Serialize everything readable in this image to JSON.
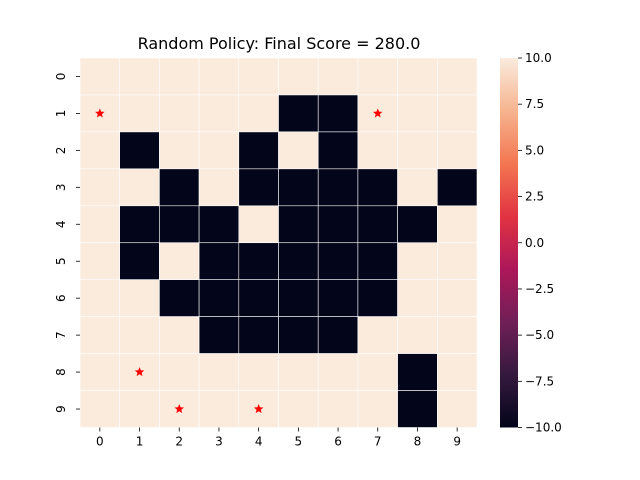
{
  "chart_data": {
    "type": "heatmap",
    "title": "Random Policy: Final Score = 280.0",
    "x_ticks": [
      "0",
      "1",
      "2",
      "3",
      "4",
      "5",
      "6",
      "7",
      "8",
      "9"
    ],
    "y_ticks": [
      "0",
      "1",
      "2",
      "3",
      "4",
      "5",
      "6",
      "7",
      "8",
      "9"
    ],
    "values": [
      [
        10,
        10,
        10,
        10,
        10,
        10,
        10,
        10,
        10,
        10
      ],
      [
        10,
        10,
        10,
        10,
        10,
        -10,
        -10,
        10,
        10,
        10
      ],
      [
        10,
        -10,
        10,
        10,
        -10,
        10,
        -10,
        10,
        10,
        10
      ],
      [
        10,
        10,
        -10,
        10,
        -10,
        -10,
        -10,
        -10,
        10,
        -10
      ],
      [
        10,
        -10,
        -10,
        -10,
        10,
        -10,
        -10,
        -10,
        -10,
        10
      ],
      [
        10,
        -10,
        10,
        -10,
        -10,
        -10,
        -10,
        -10,
        10,
        10
      ],
      [
        10,
        10,
        -10,
        -10,
        -10,
        -10,
        -10,
        -10,
        10,
        10
      ],
      [
        10,
        10,
        10,
        -10,
        -10,
        -10,
        -10,
        10,
        10,
        10
      ],
      [
        10,
        10,
        10,
        10,
        10,
        10,
        10,
        10,
        -10,
        10
      ],
      [
        10,
        10,
        10,
        10,
        10,
        10,
        10,
        10,
        -10,
        10
      ]
    ],
    "markers": [
      {
        "row": 1,
        "col": 0
      },
      {
        "row": 1,
        "col": 7
      },
      {
        "row": 8,
        "col": 1
      },
      {
        "row": 9,
        "col": 2
      },
      {
        "row": 9,
        "col": 4
      }
    ],
    "marker_color": "#ff0000",
    "colorbar": {
      "range": [
        -10,
        10
      ],
      "ticks": [
        "10.0",
        "7.5",
        "5.0",
        "2.5",
        "0.0",
        "−2.5",
        "−5.0",
        "−7.5",
        "−10.0"
      ],
      "tick_values": [
        10,
        7.5,
        5,
        2.5,
        0,
        -2.5,
        -5,
        -7.5,
        -10
      ],
      "colormap": "rocket",
      "colors": [
        "#03051a",
        "#35193e",
        "#701f57",
        "#ad1759",
        "#e13342",
        "#f37651",
        "#f6b48f",
        "#faebdd"
      ]
    },
    "high_color": "#faebdd",
    "low_color": "#03051a",
    "grid_line_color": "#ffffff"
  }
}
